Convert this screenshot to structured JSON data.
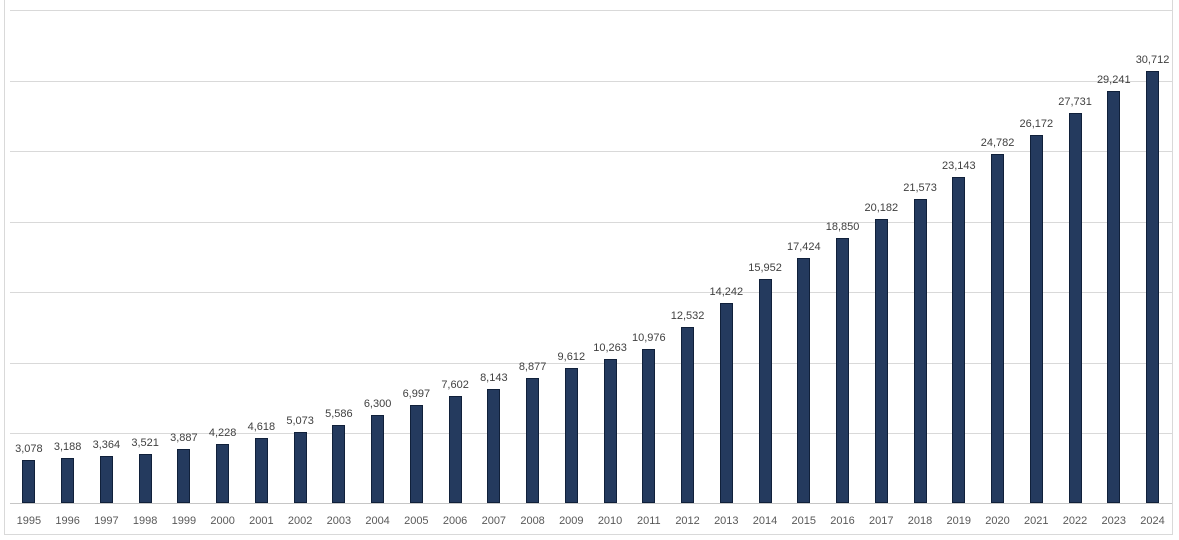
{
  "chart_data": {
    "type": "bar",
    "title": "",
    "xlabel": "",
    "ylabel": "",
    "categories": [
      "1995",
      "1996",
      "1997",
      "1998",
      "1999",
      "2000",
      "2001",
      "2002",
      "2003",
      "2004",
      "2005",
      "2006",
      "2007",
      "2008",
      "2009",
      "2010",
      "2011",
      "2012",
      "2013",
      "2014",
      "2015",
      "2016",
      "2017",
      "2018",
      "2019",
      "2020",
      "2021",
      "2022",
      "2023",
      "2024"
    ],
    "values": [
      3078,
      3188,
      3364,
      3521,
      3887,
      4228,
      4618,
      5073,
      5586,
      6300,
      6997,
      7602,
      8143,
      8877,
      9612,
      10263,
      10976,
      12532,
      14242,
      15952,
      17424,
      18850,
      20182,
      21573,
      23143,
      24782,
      26172,
      27731,
      29241,
      30712
    ],
    "ylim": [
      0,
      35000
    ],
    "gridline_step": 5000,
    "grid": true,
    "legend": "none",
    "data_labels": true,
    "y_axis_labels_visible": false,
    "colors": {
      "bar_fill": "#243A5E",
      "bar_border": "#10203A",
      "gridline": "#D9D9D9",
      "axis_line": "#C6C6C6",
      "data_label": "#404040",
      "tick_label": "#595959",
      "chart_border": "#D9D9D9",
      "background": "#FFFFFF"
    }
  }
}
